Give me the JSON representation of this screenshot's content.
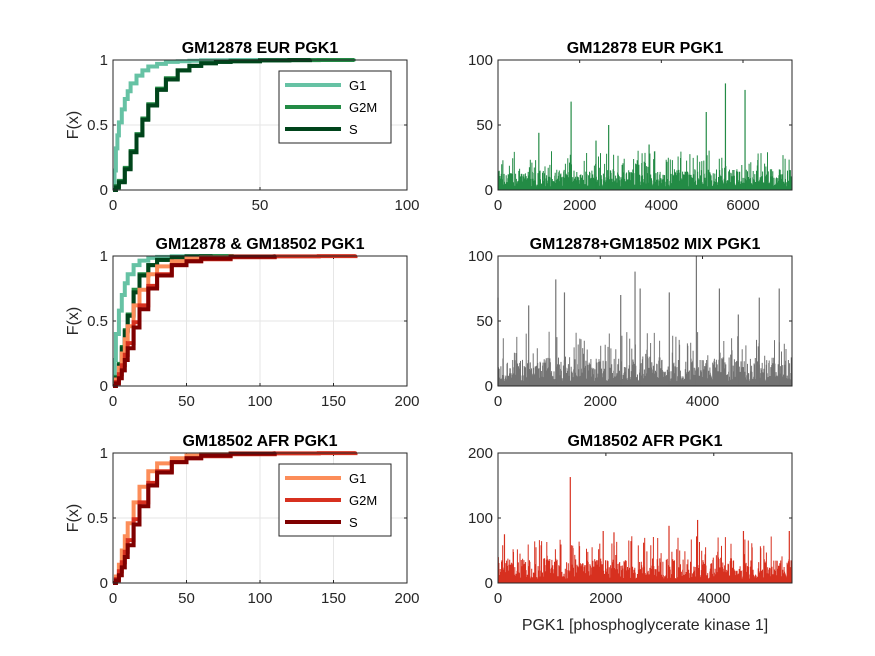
{
  "figure": {
    "xlabel_bottom_right": "PGK1 [phosphoglycerate kinase 1]"
  },
  "chart_data": [
    {
      "id": "ecdf-eur",
      "type": "line",
      "title": "GM12878 EUR PGK1",
      "ylabel": "F(x)",
      "xlim": [
        0,
        100
      ],
      "ylim": [
        0,
        1
      ],
      "xticks": [
        0,
        50,
        100
      ],
      "yticks": [
        0,
        0.5,
        1
      ],
      "grid": true,
      "legend_position": "top-right",
      "series": [
        {
          "name": "G1",
          "color": "#66c2a4",
          "x": [
            0,
            0.5,
            1,
            1.5,
            2,
            3,
            4,
            5,
            6,
            8,
            10,
            12,
            15,
            18,
            22,
            26,
            30,
            40,
            60,
            82
          ],
          "y": [
            0,
            0.15,
            0.32,
            0.42,
            0.52,
            0.62,
            0.7,
            0.76,
            0.82,
            0.88,
            0.92,
            0.95,
            0.97,
            0.985,
            0.99,
            0.995,
            0.998,
            1,
            1,
            1
          ]
        },
        {
          "name": "G2M",
          "color": "#238b45",
          "x": [
            0,
            1,
            2,
            4,
            6,
            8,
            10,
            12,
            15,
            18,
            22,
            26,
            30,
            35,
            40,
            50,
            60,
            70,
            82
          ],
          "y": [
            0,
            0.03,
            0.07,
            0.17,
            0.3,
            0.43,
            0.55,
            0.66,
            0.78,
            0.86,
            0.92,
            0.955,
            0.975,
            0.985,
            0.99,
            0.997,
            0.999,
            1,
            1
          ]
        },
        {
          "name": "S",
          "color": "#00441b",
          "x": [
            0,
            1,
            2,
            4,
            6,
            8,
            10,
            12,
            15,
            18,
            22,
            26,
            30,
            35,
            40,
            50,
            60,
            67
          ],
          "y": [
            0,
            0.02,
            0.06,
            0.16,
            0.29,
            0.42,
            0.54,
            0.65,
            0.77,
            0.85,
            0.92,
            0.955,
            0.975,
            0.985,
            0.99,
            0.997,
            0.999,
            1
          ]
        }
      ]
    },
    {
      "id": "hist-eur",
      "type": "bar",
      "title": "GM12878 EUR PGK1",
      "xlim": [
        0,
        7200
      ],
      "ylim": [
        0,
        100
      ],
      "xticks": [
        0,
        2000,
        4000,
        6000
      ],
      "yticks": [
        0,
        50,
        100
      ],
      "n_cells": 7200,
      "color": "#238b45",
      "typical_max": 16,
      "peaks": [
        [
          1000,
          44
        ],
        [
          1790,
          68
        ],
        [
          2710,
          50
        ],
        [
          5100,
          60
        ],
        [
          5570,
          82
        ],
        [
          6050,
          77
        ],
        [
          2400,
          38
        ],
        [
          3700,
          35
        ]
      ]
    },
    {
      "id": "ecdf-mix",
      "type": "line",
      "title": "GM12878 & GM18502 PGK1",
      "ylabel": "F(x)",
      "xlim": [
        0,
        200
      ],
      "ylim": [
        0,
        1
      ],
      "xticks": [
        0,
        50,
        100,
        150,
        200
      ],
      "yticks": [
        0,
        0.5,
        1
      ],
      "grid": true,
      "series": [
        {
          "color": "#66c2a4",
          "x": [
            0,
            1,
            2,
            4,
            6,
            8,
            10,
            14,
            18,
            24,
            30,
            40,
            60,
            82
          ],
          "y": [
            0,
            0.2,
            0.4,
            0.58,
            0.7,
            0.79,
            0.86,
            0.93,
            0.965,
            0.985,
            0.993,
            0.998,
            1,
            1
          ]
        },
        {
          "color": "#238b45",
          "x": [
            0,
            2,
            4,
            6,
            8,
            10,
            14,
            18,
            24,
            30,
            40,
            50,
            60,
            82
          ],
          "y": [
            0,
            0.07,
            0.17,
            0.3,
            0.43,
            0.55,
            0.74,
            0.86,
            0.93,
            0.97,
            0.99,
            0.997,
            0.999,
            1
          ]
        },
        {
          "color": "#00441b",
          "x": [
            0,
            2,
            4,
            6,
            8,
            10,
            14,
            18,
            24,
            30,
            40,
            50,
            67
          ],
          "y": [
            0,
            0.06,
            0.16,
            0.29,
            0.42,
            0.54,
            0.72,
            0.85,
            0.93,
            0.97,
            0.99,
            0.997,
            1
          ]
        },
        {
          "color": "#fc8d59",
          "x": [
            0,
            2,
            4,
            6,
            8,
            10,
            14,
            18,
            24,
            30,
            40,
            50,
            60,
            80,
            110
          ],
          "y": [
            0,
            0.05,
            0.14,
            0.25,
            0.36,
            0.46,
            0.62,
            0.74,
            0.86,
            0.92,
            0.96,
            0.98,
            0.99,
            0.997,
            1
          ]
        },
        {
          "color": "#d7301f",
          "x": [
            0,
            2,
            4,
            6,
            8,
            10,
            14,
            18,
            24,
            30,
            40,
            50,
            60,
            80,
            110,
            140,
            165
          ],
          "y": [
            0,
            0.03,
            0.09,
            0.16,
            0.24,
            0.33,
            0.49,
            0.62,
            0.77,
            0.86,
            0.93,
            0.96,
            0.975,
            0.99,
            0.997,
            0.999,
            1
          ]
        },
        {
          "color": "#7f0000",
          "x": [
            0,
            2,
            4,
            6,
            8,
            10,
            14,
            18,
            24,
            30,
            40,
            50,
            60,
            80,
            110
          ],
          "y": [
            0,
            0.02,
            0.06,
            0.12,
            0.2,
            0.29,
            0.45,
            0.59,
            0.75,
            0.85,
            0.93,
            0.96,
            0.98,
            0.995,
            1
          ]
        }
      ]
    },
    {
      "id": "hist-mix",
      "type": "bar",
      "title": "GM12878+GM18502 MIX PGK1",
      "xlim": [
        0,
        5750
      ],
      "ylim": [
        0,
        100
      ],
      "xticks": [
        0,
        2000,
        4000
      ],
      "yticks": [
        0,
        50,
        100
      ],
      "n_cells": 5750,
      "color": "#737373",
      "typical_max": 22,
      "peaks": [
        [
          0,
          68
        ],
        [
          1130,
          82
        ],
        [
          1300,
          72
        ],
        [
          2400,
          70
        ],
        [
          2680,
          88
        ],
        [
          2780,
          75
        ],
        [
          3350,
          72
        ],
        [
          3880,
          100
        ],
        [
          4330,
          75
        ],
        [
          5110,
          68
        ],
        [
          5500,
          75
        ],
        [
          600,
          62
        ],
        [
          4700,
          55
        ]
      ]
    },
    {
      "id": "ecdf-afr",
      "type": "line",
      "title": "GM18502 AFR PGK1",
      "ylabel": "F(x)",
      "xlim": [
        0,
        200
      ],
      "ylim": [
        0,
        1
      ],
      "xticks": [
        0,
        50,
        100,
        150,
        200
      ],
      "yticks": [
        0,
        0.5,
        1
      ],
      "grid": true,
      "legend_position": "top-right",
      "series": [
        {
          "name": "G1",
          "color": "#fc8d59",
          "x": [
            0,
            2,
            4,
            6,
            8,
            10,
            14,
            18,
            24,
            30,
            40,
            50,
            60,
            80,
            110
          ],
          "y": [
            0,
            0.05,
            0.14,
            0.25,
            0.36,
            0.46,
            0.62,
            0.74,
            0.86,
            0.92,
            0.96,
            0.98,
            0.99,
            0.997,
            1
          ]
        },
        {
          "name": "G2M",
          "color": "#d7301f",
          "x": [
            0,
            2,
            4,
            6,
            8,
            10,
            14,
            18,
            24,
            30,
            40,
            50,
            60,
            80,
            110,
            140,
            165
          ],
          "y": [
            0,
            0.03,
            0.09,
            0.16,
            0.24,
            0.33,
            0.49,
            0.62,
            0.77,
            0.86,
            0.93,
            0.96,
            0.975,
            0.99,
            0.997,
            0.999,
            1
          ]
        },
        {
          "name": "S",
          "color": "#7f0000",
          "x": [
            0,
            2,
            4,
            6,
            8,
            10,
            14,
            18,
            24,
            30,
            40,
            50,
            60,
            80,
            110
          ],
          "y": [
            0,
            0.02,
            0.06,
            0.12,
            0.2,
            0.29,
            0.45,
            0.59,
            0.75,
            0.85,
            0.93,
            0.96,
            0.98,
            0.995,
            1
          ]
        }
      ]
    },
    {
      "id": "hist-afr",
      "type": "bar",
      "title": "GM18502 AFR PGK1",
      "xlabel": "PGK1 [phosphoglycerate kinase 1]",
      "xlim": [
        0,
        5450
      ],
      "ylim": [
        0,
        200
      ],
      "xticks": [
        0,
        2000,
        4000
      ],
      "yticks": [
        0,
        100,
        200
      ],
      "n_cells": 5450,
      "color": "#d7301f",
      "typical_max": 38,
      "peaks": [
        [
          120,
          75
        ],
        [
          1340,
          163
        ],
        [
          1950,
          80
        ],
        [
          2150,
          78
        ],
        [
          3170,
          88
        ],
        [
          3700,
          97
        ],
        [
          4550,
          80
        ],
        [
          5400,
          80
        ],
        [
          2700,
          62
        ],
        [
          800,
          58
        ]
      ]
    }
  ]
}
